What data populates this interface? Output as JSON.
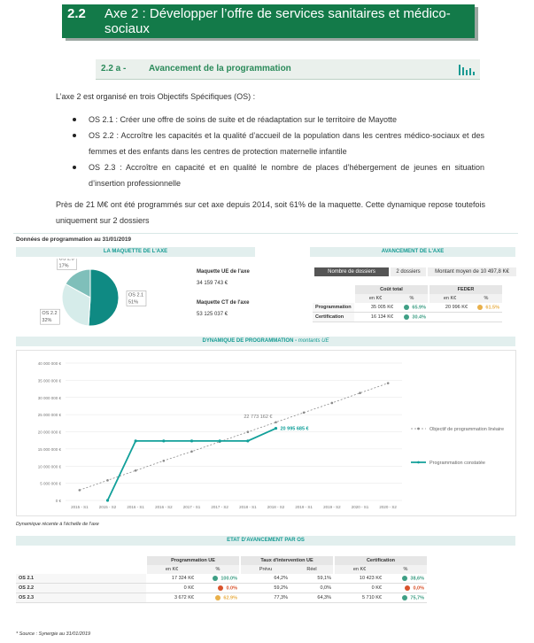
{
  "header": {
    "number": "2.2",
    "title": "Axe 2 : Développer l’offre de services sanitaires et médico-sociaux"
  },
  "section": {
    "number": "2.2 a -",
    "title": "Avancement de la programmation"
  },
  "intro": "L’axe 2 est organisé en trois Objectifs Spécifiques (OS) :",
  "bullets": [
    "OS 2.1 : Créer une offre de soins de suite et de réadaptation sur le territoire de Mayotte",
    "OS 2.2 : Accroître les capacités et la qualité d’accueil de la population dans les centres médico-sociaux et des femmes et des enfants dans les centres de protection maternelle infantile",
    "OS 2.3 : Accroître en capacité et en qualité le nombre de places d’hébergement de jeunes en situation d’insertion professionnelle"
  ],
  "paragraph": "Près de 21 M€ ont été programmés sur cet axe depuis 2014, soit 61% de la maquette. Cette dynamique repose toutefois uniquement sur 2 dossiers",
  "dashboard": {
    "title": "Données de programmation au 31/01/2019",
    "maquette": {
      "title": "LA MAQUETTE DE L'AXE",
      "ue_label": "Maquette UE de l'axe",
      "ue_value": "34 159 743 €",
      "ct_label": "Maquette CT de l'axe",
      "ct_value": "53 125 037 €"
    },
    "avancement": {
      "title": "AVANCEMENT DE L'AXE",
      "dossiers_label": "Nombre de dossiers",
      "dossiers_value": "2 dossiers",
      "montant": "Montant moyen de 10 497,8 K€",
      "groups": [
        "Coût total",
        "FEDER"
      ],
      "subheaders": [
        "en K€",
        "%",
        "en K€",
        "%"
      ],
      "rows": [
        {
          "label": "Programmation",
          "cells": [
            "35 005 K€",
            "65.9%",
            "20 996 K€",
            "61.5%"
          ],
          "dots": [
            null,
            "#3f9f85",
            null,
            "#e9b04a"
          ]
        },
        {
          "label": "Certification",
          "cells": [
            "16 134 K€",
            "30.4%"
          ],
          "dots": [
            null,
            "#3f9f85"
          ]
        }
      ]
    },
    "note": "Dynamique récente à l'échelle de l'axe",
    "etat": {
      "title": "ETAT D'AVANCEMENT PAR OS",
      "groups": [
        "Programmation UE",
        "Taux d'intervention UE",
        "Certification"
      ],
      "subheaders": [
        "en K€",
        "%",
        "Prévu",
        "Réel",
        "en K€",
        "%"
      ],
      "rows": [
        {
          "label": "OS 2.1",
          "cells": [
            "17 324 K€",
            "100.0%",
            "64,2%",
            "59,1%",
            "10 423 K€",
            "38,6%"
          ],
          "dots": [
            null,
            "#3f9f85",
            null,
            null,
            null,
            "#3f9f85"
          ]
        },
        {
          "label": "OS 2.2",
          "cells": [
            "0 K€",
            "0.0%",
            "59,2%",
            "0,0%",
            "0 K€",
            "0,0%"
          ],
          "dots": [
            null,
            "#d9532c",
            null,
            null,
            null,
            "#d9532c"
          ]
        },
        {
          "label": "OS 2.3",
          "cells": [
            "3 672 K€",
            "62.9%",
            "77,3%",
            "64,3%",
            "5 710 K€",
            "75,7%"
          ],
          "dots": [
            null,
            "#e9b04a",
            null,
            null,
            null,
            "#3f9f85"
          ]
        }
      ]
    },
    "source": "* Source : Synergie au 31/01/2019"
  },
  "chart_data": [
    {
      "type": "pie",
      "categories": [
        "OS 2.1",
        "OS 2.2",
        "OS 2.3"
      ],
      "values": [
        51,
        32,
        17
      ],
      "value_labels": [
        "51%",
        "32%",
        "17%"
      ],
      "colors": [
        "#0f8a83",
        "#d6ecea",
        "#7fbfba"
      ]
    },
    {
      "type": "line",
      "title": "DYNAMIQUE DE PROGRAMMATION -",
      "subtitle": "montants UE",
      "categories": [
        "2015 - S1",
        "2015 - S2",
        "2016 - S1",
        "2016 - S2",
        "2017 - S1",
        "2017 - S2",
        "2018 - S1",
        "2018 - S2",
        "2019 - S1",
        "2019 - S2",
        "2020 - S1",
        "2020 - S2"
      ],
      "series": [
        {
          "name": "Objectif de programmation linéaire",
          "color": "#8a8a8a",
          "dashed": true,
          "values": [
            3000000,
            5850000,
            8700000,
            11550000,
            14250000,
            17100000,
            19950000,
            22773162,
            25600000,
            28400000,
            31300000,
            34159743
          ],
          "value_labels": [
            null,
            null,
            null,
            null,
            null,
            null,
            null,
            "22 773 162 €",
            null,
            null,
            null,
            null
          ]
        },
        {
          "name": "Programmation constatée",
          "color": "#12a09a",
          "dashed": false,
          "values": [
            null,
            0,
            17324000,
            17324000,
            17324000,
            17324000,
            17324000,
            20995685,
            null,
            null,
            null,
            null
          ],
          "value_labels": [
            null,
            null,
            null,
            null,
            null,
            null,
            null,
            "20 995 685 €",
            null,
            null,
            null,
            null
          ]
        }
      ],
      "ylim": [
        0,
        40000000
      ],
      "yticks": [
        {
          "value": 0,
          "label": "0 €"
        },
        {
          "value": 5000000,
          "label": "5 000 000 €"
        },
        {
          "value": 10000000,
          "label": "10 000 000 €"
        },
        {
          "value": 15000000,
          "label": "15 000 000 €"
        },
        {
          "value": 20000000,
          "label": "20 000 000 €"
        },
        {
          "value": 25000000,
          "label": "25 000 000 €"
        },
        {
          "value": 30000000,
          "label": "30 000 000 €"
        },
        {
          "value": 35000000,
          "label": "35 000 000 €"
        },
        {
          "value": 40000000,
          "label": "40 000 000 €"
        }
      ],
      "grid": true,
      "legend": "right"
    }
  ]
}
